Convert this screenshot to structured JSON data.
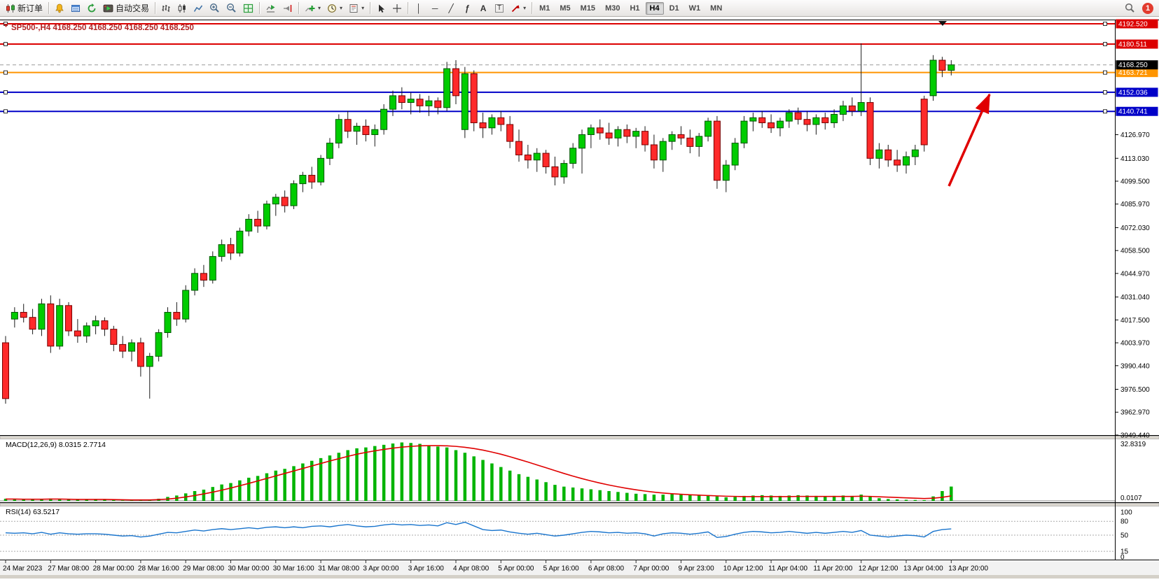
{
  "toolbar": {
    "new_order_label": "新订单",
    "autotrading_label": "自动交易",
    "notification_badge": "1",
    "tool_glyphs": {
      "vertical_line": "│",
      "horizontal_line": "─",
      "trendline": "╱",
      "fibonacci": "ƒ",
      "text": "A",
      "text_label": "T",
      "caret": "▾"
    },
    "timeframes": [
      {
        "label": "M1",
        "active": false
      },
      {
        "label": "M5",
        "active": false
      },
      {
        "label": "M15",
        "active": false
      },
      {
        "label": "M30",
        "active": false
      },
      {
        "label": "H1",
        "active": false
      },
      {
        "label": "H4",
        "active": true
      },
      {
        "label": "D1",
        "active": false
      },
      {
        "label": "W1",
        "active": false
      },
      {
        "label": "MN",
        "active": false
      }
    ]
  },
  "chart": {
    "symbol_title": "SP500-,H4",
    "ohlc_text": "4168.250 4168.250 4168.250 4168.250",
    "current_price": "4168.250",
    "hlines": [
      {
        "price": 4192.52,
        "label": "4192.520",
        "color": "#dc0000"
      },
      {
        "price": 4180.511,
        "label": "4180.511",
        "color": "#dc0000"
      },
      {
        "price": 4163.721,
        "label": "4163.721",
        "color": "#ff9500"
      },
      {
        "price": 4152.036,
        "label": "4152.036",
        "color": "#0000c8"
      },
      {
        "price": 4140.741,
        "label": "4140.741",
        "color": "#0000c8"
      }
    ],
    "price_axis_ticks": [
      "4126.970",
      "4113.030",
      "4099.500",
      "4085.970",
      "4072.030",
      "4058.500",
      "4044.970",
      "4031.040",
      "4017.500",
      "4003.970",
      "3990.440",
      "3976.500",
      "3962.970",
      "3949.440"
    ],
    "colors": {
      "bull": "#00cc00",
      "bull_border": "#005500",
      "bear": "#ff2a2a",
      "bear_border": "#770000",
      "macd_hist": "#00b400",
      "macd_signal": "#e00000",
      "rsi_line": "#1874cd",
      "hline_red": "#dc0000",
      "hline_blue": "#0000c8",
      "hline_orange": "#ff9500"
    }
  },
  "chart_data": {
    "type": "candlestick",
    "symbol": "SP500-",
    "timeframe": "H4",
    "price_range": [
      3949.44,
      4192.52
    ],
    "time_labels": [
      "24 Mar 2023",
      "27 Mar 08:00",
      "28 Mar 00:00",
      "28 Mar 16:00",
      "29 Mar 08:00",
      "30 Mar 00:00",
      "30 Mar 16:00",
      "31 Mar 08:00",
      "3 Apr 00:00",
      "3 Apr 16:00",
      "4 Apr 08:00",
      "5 Apr 00:00",
      "5 Apr 16:00",
      "6 Apr 08:00",
      "7 Apr 00:00",
      "9 Apr 23:00",
      "10 Apr 12:00",
      "11 Apr 04:00",
      "11 Apr 20:00",
      "12 Apr 12:00",
      "13 Apr 04:00",
      "13 Apr 20:00"
    ],
    "candles": [
      [
        4004,
        4008,
        3968,
        3971
      ],
      [
        4018,
        4025,
        4013,
        4022
      ],
      [
        4022,
        4027,
        4016,
        4019
      ],
      [
        4019,
        4024,
        4009,
        4012
      ],
      [
        4012,
        4030,
        4008,
        4027
      ],
      [
        4027,
        4032,
        3998,
        4002
      ],
      [
        4002,
        4030,
        4000,
        4026
      ],
      [
        4026,
        4028,
        4008,
        4011
      ],
      [
        4011,
        4018,
        4004,
        4008
      ],
      [
        4008,
        4016,
        4004,
        4014
      ],
      [
        4014,
        4020,
        4009,
        4017
      ],
      [
        4017,
        4019,
        4008,
        4012
      ],
      [
        4012,
        4014,
        3999,
        4003
      ],
      [
        4003,
        4008,
        3995,
        3999
      ],
      [
        3999,
        4006,
        3993,
        4004
      ],
      [
        4004,
        4007,
        3984,
        3990
      ],
      [
        3990,
        3998,
        3971,
        3996
      ],
      [
        3996,
        4012,
        3993,
        4010
      ],
      [
        4010,
        4025,
        4007,
        4022
      ],
      [
        4022,
        4028,
        4014,
        4018
      ],
      [
        4018,
        4038,
        4016,
        4035
      ],
      [
        4035,
        4048,
        4032,
        4045
      ],
      [
        4045,
        4050,
        4037,
        4041
      ],
      [
        4041,
        4058,
        4039,
        4055
      ],
      [
        4055,
        4065,
        4052,
        4062
      ],
      [
        4062,
        4066,
        4053,
        4057
      ],
      [
        4057,
        4072,
        4055,
        4070
      ],
      [
        4070,
        4080,
        4067,
        4077
      ],
      [
        4077,
        4082,
        4069,
        4073
      ],
      [
        4073,
        4088,
        4071,
        4086
      ],
      [
        4086,
        4092,
        4079,
        4090
      ],
      [
        4090,
        4094,
        4081,
        4085
      ],
      [
        4085,
        4100,
        4083,
        4098
      ],
      [
        4098,
        4105,
        4093,
        4103
      ],
      [
        4103,
        4108,
        4095,
        4099
      ],
      [
        4099,
        4115,
        4097,
        4113
      ],
      [
        4113,
        4125,
        4109,
        4122
      ],
      [
        4122,
        4139,
        4119,
        4136
      ],
      [
        4136,
        4141,
        4125,
        4129
      ],
      [
        4129,
        4134,
        4121,
        4132
      ],
      [
        4132,
        4136,
        4123,
        4127
      ],
      [
        4127,
        4133,
        4120,
        4130
      ],
      [
        4130,
        4145,
        4127,
        4142
      ],
      [
        4142,
        4153,
        4138,
        4150
      ],
      [
        4150,
        4155,
        4142,
        4146
      ],
      [
        4146,
        4152,
        4139,
        4148
      ],
      [
        4148,
        4151,
        4140,
        4144
      ],
      [
        4144,
        4150,
        4138,
        4147
      ],
      [
        4147,
        4149,
        4139,
        4143
      ],
      [
        4143,
        4170,
        4141,
        4166
      ],
      [
        4166,
        4171,
        4145,
        4150
      ],
      [
        4130,
        4167,
        4125,
        4163
      ],
      [
        4163,
        4165,
        4129,
        4134
      ],
      [
        4134,
        4140,
        4125,
        4131
      ],
      [
        4131,
        4139,
        4127,
        4137
      ],
      [
        4137,
        4141,
        4129,
        4133
      ],
      [
        4133,
        4138,
        4119,
        4123
      ],
      [
        4123,
        4130,
        4111,
        4115
      ],
      [
        4115,
        4121,
        4107,
        4112
      ],
      [
        4112,
        4119,
        4105,
        4116
      ],
      [
        4116,
        4118,
        4104,
        4108
      ],
      [
        4108,
        4114,
        4097,
        4102
      ],
      [
        4102,
        4112,
        4098,
        4110
      ],
      [
        4110,
        4122,
        4107,
        4119
      ],
      [
        4119,
        4130,
        4104,
        4127
      ],
      [
        4127,
        4133,
        4119,
        4131
      ],
      [
        4131,
        4136,
        4124,
        4128
      ],
      [
        4128,
        4134,
        4121,
        4125
      ],
      [
        4125,
        4132,
        4120,
        4130
      ],
      [
        4130,
        4133,
        4122,
        4126
      ],
      [
        4126,
        4131,
        4119,
        4129
      ],
      [
        4129,
        4132,
        4117,
        4121
      ],
      [
        4121,
        4127,
        4107,
        4112
      ],
      [
        4112,
        4125,
        4105,
        4123
      ],
      [
        4123,
        4129,
        4118,
        4127
      ],
      [
        4127,
        4132,
        4121,
        4125
      ],
      [
        4125,
        4130,
        4116,
        4120
      ],
      [
        4120,
        4128,
        4114,
        4126
      ],
      [
        4126,
        4137,
        4123,
        4135
      ],
      [
        4135,
        4138,
        4095,
        4100
      ],
      [
        4100,
        4112,
        4093,
        4109
      ],
      [
        4109,
        4125,
        4106,
        4122
      ],
      [
        4122,
        4138,
        4119,
        4135
      ],
      [
        4135,
        4140,
        4129,
        4137
      ],
      [
        4137,
        4141,
        4131,
        4134
      ],
      [
        4134,
        4139,
        4128,
        4131
      ],
      [
        4131,
        4137,
        4126,
        4135
      ],
      [
        4135,
        4142,
        4131,
        4140
      ],
      [
        4140,
        4143,
        4133,
        4136
      ],
      [
        4136,
        4141,
        4129,
        4133
      ],
      [
        4133,
        4139,
        4127,
        4137
      ],
      [
        4137,
        4140,
        4130,
        4134
      ],
      [
        4134,
        4142,
        4131,
        4139
      ],
      [
        4139,
        4147,
        4135,
        4144
      ],
      [
        4144,
        4149,
        4138,
        4141
      ],
      [
        4141,
        4181,
        4138,
        4146
      ],
      [
        4146,
        4149,
        4109,
        4113
      ],
      [
        4113,
        4122,
        4107,
        4118
      ],
      [
        4118,
        4121,
        4108,
        4112
      ],
      [
        4112,
        4118,
        4105,
        4109
      ],
      [
        4109,
        4117,
        4104,
        4114
      ],
      [
        4114,
        4121,
        4109,
        4118
      ],
      [
        4148,
        4150,
        4117,
        4121
      ],
      [
        4150,
        4174,
        4147,
        4171
      ],
      [
        4171,
        4173,
        4161,
        4165
      ],
      [
        4165,
        4171,
        4162,
        4168.25
      ]
    ],
    "indicators": {
      "macd": {
        "label": "MACD(12,26,9)",
        "main_value": "8.0315",
        "signal_value": "2.7714",
        "scale_top": "32.8319",
        "scale_bottom": "0.0107",
        "histogram": [
          1.2,
          1.0,
          0.9,
          0.8,
          1.0,
          1.3,
          1.0,
          0.8,
          0.6,
          0.8,
          1.0,
          0.8,
          0.5,
          0.3,
          0.4,
          0.3,
          0.5,
          1.2,
          2.2,
          3.0,
          4.2,
          5.5,
          6.3,
          7.8,
          9.2,
          10.0,
          11.5,
          13.0,
          14.0,
          15.5,
          17.0,
          18.0,
          19.5,
          21.0,
          22.5,
          24.0,
          25.5,
          27.0,
          28.5,
          29.5,
          30.0,
          30.8,
          31.5,
          32.2,
          32.8,
          32.5,
          32.0,
          31.2,
          30.5,
          30.0,
          28.5,
          27.0,
          25.0,
          23.0,
          21.0,
          19.0,
          17.0,
          15.0,
          13.5,
          12.0,
          10.5,
          9.0,
          8.0,
          7.5,
          7.0,
          6.5,
          6.0,
          5.5,
          5.0,
          4.5,
          4.0,
          3.8,
          3.5,
          3.5,
          3.8,
          3.5,
          3.2,
          3.0,
          3.2,
          2.5,
          2.0,
          2.2,
          2.8,
          3.0,
          3.2,
          3.0,
          2.8,
          3.0,
          3.2,
          3.0,
          2.8,
          2.6,
          2.8,
          3.0,
          2.8,
          3.5,
          2.5,
          1.5,
          1.0,
          0.8,
          0.6,
          0.5,
          0.4,
          2.5,
          5.5,
          8.03
        ],
        "signal_line": [
          1.0,
          1.0,
          0.9,
          0.9,
          0.9,
          1.0,
          1.0,
          0.9,
          0.8,
          0.8,
          0.8,
          0.8,
          0.7,
          0.6,
          0.5,
          0.5,
          0.5,
          0.7,
          1.0,
          1.5,
          2.2,
          3.0,
          3.9,
          4.9,
          6.0,
          7.2,
          8.5,
          9.8,
          11.2,
          12.6,
          14.0,
          15.4,
          16.8,
          18.2,
          19.6,
          21.0,
          22.4,
          23.7,
          25.0,
          26.2,
          27.2,
          28.1,
          28.9,
          29.6,
          30.2,
          30.6,
          30.9,
          31.0,
          31.0,
          30.9,
          30.6,
          30.1,
          29.4,
          28.5,
          27.4,
          26.2,
          24.8,
          23.3,
          21.8,
          20.2,
          18.6,
          17.0,
          15.4,
          13.9,
          12.5,
          11.2,
          10.0,
          8.9,
          7.9,
          7.0,
          6.2,
          5.5,
          4.9,
          4.4,
          4.0,
          3.7,
          3.4,
          3.2,
          3.0,
          2.8,
          2.6,
          2.5,
          2.4,
          2.4,
          2.4,
          2.4,
          2.4,
          2.4,
          2.5,
          2.5,
          2.5,
          2.5,
          2.5,
          2.5,
          2.5,
          2.6,
          2.5,
          2.3,
          2.1,
          1.9,
          1.7,
          1.5,
          1.3,
          1.5,
          2.0,
          2.77
        ]
      },
      "rsi": {
        "label": "RSI(14)",
        "value": "63.5217",
        "scale_labels": [
          "100",
          "80",
          "50",
          "15",
          "0"
        ],
        "scale_values": [
          100,
          80,
          50,
          15,
          0
        ],
        "levels": [
          80,
          50,
          15
        ],
        "values": [
          55,
          54,
          55,
          53,
          56,
          52,
          55,
          53,
          52,
          53,
          53,
          52,
          50,
          48,
          49,
          46,
          48,
          52,
          56,
          55,
          58,
          61,
          59,
          62,
          64,
          62,
          64,
          66,
          64,
          67,
          68,
          66,
          68,
          66,
          69,
          70,
          68,
          71,
          73,
          70,
          68,
          69,
          72,
          74,
          72,
          73,
          71,
          72,
          70,
          77,
          73,
          78,
          70,
          62,
          60,
          61,
          57,
          54,
          52,
          54,
          51,
          48,
          50,
          53,
          56,
          58,
          57,
          55,
          56,
          54,
          55,
          53,
          48,
          53,
          55,
          54,
          52,
          54,
          57,
          45,
          47,
          52,
          56,
          58,
          57,
          55,
          56,
          58,
          56,
          54,
          56,
          54,
          56,
          58,
          56,
          60,
          50,
          48,
          46,
          48,
          50,
          49,
          46,
          58,
          62,
          63.52
        ]
      }
    }
  }
}
